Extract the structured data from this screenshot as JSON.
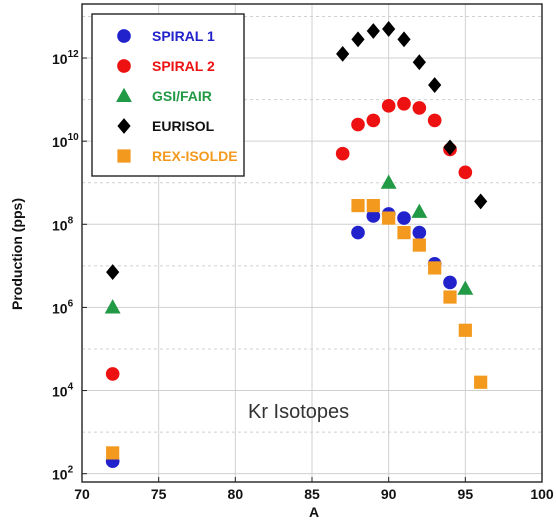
{
  "chart_data": {
    "type": "scatter",
    "title": "",
    "xlabel": "A",
    "ylabel": "Production (pps)",
    "xlim": [
      70,
      100
    ],
    "ylim_log10": [
      1.8,
      13.3
    ],
    "y_scale": "log",
    "grid": true,
    "legend_position": "top-left",
    "annotation": "Kr Isotopes",
    "x_ticks": [
      "70",
      "75",
      "80",
      "85",
      "90",
      "95",
      "100"
    ],
    "y_ticks": [
      {
        "base": "10",
        "exp": "2",
        "log10": 2
      },
      {
        "base": "10",
        "exp": "4",
        "log10": 4
      },
      {
        "base": "10",
        "exp": "6",
        "log10": 6
      },
      {
        "base": "10",
        "exp": "8",
        "log10": 8
      },
      {
        "base": "10",
        "exp": "10",
        "log10": 10
      },
      {
        "base": "10",
        "exp": "12",
        "log10": 12
      }
    ],
    "series": [
      {
        "name": "SPIRAL 1",
        "color": "#2222cc",
        "marker": "circle",
        "points": [
          [
            72,
            2.3
          ],
          [
            88,
            7.8
          ],
          [
            89,
            8.2
          ],
          [
            90,
            8.25
          ],
          [
            91,
            8.15
          ],
          [
            92,
            7.8
          ],
          [
            93,
            7.05
          ],
          [
            94,
            6.6
          ]
        ]
      },
      {
        "name": "SPIRAL 2",
        "color": "#ee1111",
        "marker": "circle",
        "points": [
          [
            72,
            4.4
          ],
          [
            87,
            9.7
          ],
          [
            88,
            10.4
          ],
          [
            89,
            10.5
          ],
          [
            90,
            10.85
          ],
          [
            91,
            10.9
          ],
          [
            92,
            10.8
          ],
          [
            93,
            10.5
          ],
          [
            94,
            9.8
          ],
          [
            95,
            9.25
          ]
        ]
      },
      {
        "name": "GSI/FAIR",
        "color": "#229944",
        "marker": "triangle",
        "points": [
          [
            72,
            6.0
          ],
          [
            90,
            9.0
          ],
          [
            92,
            8.3
          ],
          [
            95,
            6.45
          ]
        ]
      },
      {
        "name": "EURISOL",
        "color": "#000000",
        "marker": "diamond",
        "points": [
          [
            72,
            6.85
          ],
          [
            87,
            12.1
          ],
          [
            88,
            12.45
          ],
          [
            89,
            12.65
          ],
          [
            90,
            12.7
          ],
          [
            91,
            12.45
          ],
          [
            92,
            11.9
          ],
          [
            93,
            11.35
          ],
          [
            94,
            9.85
          ],
          [
            96,
            8.55
          ]
        ]
      },
      {
        "name": "REX-ISOLDE",
        "color": "#f39a1e",
        "marker": "square",
        "points": [
          [
            72,
            2.5
          ],
          [
            88,
            8.45
          ],
          [
            89,
            8.45
          ],
          [
            90,
            8.15
          ],
          [
            91,
            7.8
          ],
          [
            92,
            7.5
          ],
          [
            93,
            6.95
          ],
          [
            94,
            6.25
          ],
          [
            95,
            5.45
          ],
          [
            96,
            4.2
          ]
        ]
      }
    ]
  }
}
